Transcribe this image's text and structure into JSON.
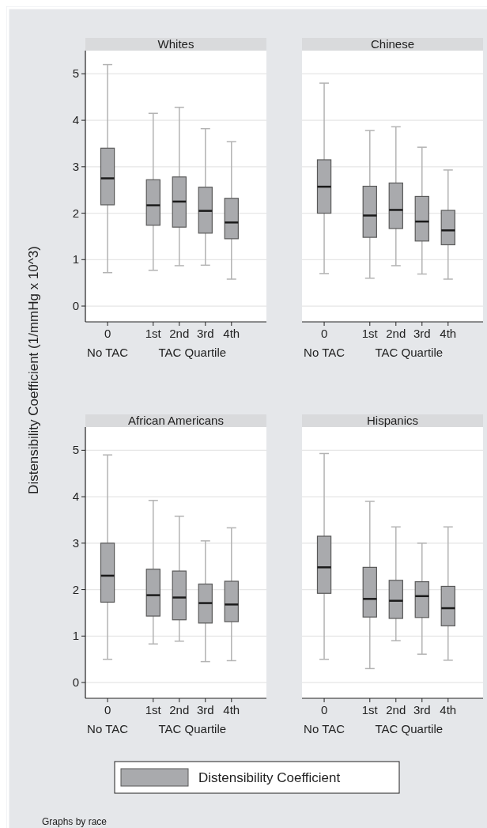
{
  "chart_data": [
    {
      "type": "box",
      "title": "Whites",
      "ylabel": "Distensibility Coefficient (1/mmHg x 10^3)",
      "categories": [
        "0",
        "1st",
        "2nd",
        "3rd",
        "4th"
      ],
      "ylim": [
        -0.34,
        5.5
      ],
      "yticks": [
        0,
        1,
        2,
        3,
        4,
        5
      ],
      "grid": "y",
      "annotations": [
        "No TAC",
        "TAC Quartile"
      ],
      "series": [
        {
          "color": "#a9aaad",
          "boxes": [
            {
              "low": 0.72,
              "q1": 2.18,
              "median": 2.75,
              "q3": 3.4,
              "high": 5.2
            },
            {
              "low": 0.77,
              "q1": 1.74,
              "median": 2.17,
              "q3": 2.72,
              "high": 4.15
            },
            {
              "low": 0.87,
              "q1": 1.7,
              "median": 2.25,
              "q3": 2.78,
              "high": 4.28
            },
            {
              "low": 0.88,
              "q1": 1.57,
              "median": 2.05,
              "q3": 2.56,
              "high": 3.82
            },
            {
              "low": 0.58,
              "q1": 1.45,
              "median": 1.8,
              "q3": 2.32,
              "high": 3.54
            }
          ]
        }
      ]
    },
    {
      "type": "box",
      "title": "Chinese",
      "categories": [
        "0",
        "1st",
        "2nd",
        "3rd",
        "4th"
      ],
      "ylim": [
        -0.34,
        5.5
      ],
      "yticks": [
        0,
        1,
        2,
        3,
        4,
        5
      ],
      "grid": "y",
      "tick_labels": "x",
      "annotations": [
        "No TAC",
        "TAC Quartile"
      ],
      "series": [
        {
          "color": "#a9aaad",
          "boxes": [
            {
              "low": 0.7,
              "q1": 2.0,
              "median": 2.57,
              "q3": 3.15,
              "high": 4.8
            },
            {
              "low": 0.6,
              "q1": 1.48,
              "median": 1.95,
              "q3": 2.58,
              "high": 3.78
            },
            {
              "low": 0.87,
              "q1": 1.67,
              "median": 2.07,
              "q3": 2.65,
              "high": 3.86
            },
            {
              "low": 0.69,
              "q1": 1.4,
              "median": 1.82,
              "q3": 2.36,
              "high": 3.42
            },
            {
              "low": 0.58,
              "q1": 1.32,
              "median": 1.63,
              "q3": 2.06,
              "high": 2.93
            }
          ]
        }
      ]
    },
    {
      "type": "box",
      "title": "African Americans",
      "categories": [
        "0",
        "1st",
        "2nd",
        "3rd",
        "4th"
      ],
      "ylim": [
        -0.34,
        5.5
      ],
      "yticks": [
        0,
        1,
        2,
        3,
        4,
        5
      ],
      "grid": "y",
      "annotations": [
        "No TAC",
        "TAC Quartile"
      ],
      "series": [
        {
          "color": "#a9aaad",
          "boxes": [
            {
              "low": 0.5,
              "q1": 1.73,
              "median": 2.3,
              "q3": 3.0,
              "high": 4.9
            },
            {
              "low": 0.83,
              "q1": 1.43,
              "median": 1.88,
              "q3": 2.44,
              "high": 3.92
            },
            {
              "low": 0.89,
              "q1": 1.35,
              "median": 1.83,
              "q3": 2.4,
              "high": 3.58
            },
            {
              "low": 0.45,
              "q1": 1.28,
              "median": 1.71,
              "q3": 2.12,
              "high": 3.05
            },
            {
              "low": 0.47,
              "q1": 1.31,
              "median": 1.68,
              "q3": 2.18,
              "high": 3.33
            }
          ]
        }
      ]
    },
    {
      "type": "box",
      "title": "Hispanics",
      "categories": [
        "0",
        "1st",
        "2nd",
        "3rd",
        "4th"
      ],
      "ylim": [
        -0.34,
        5.5
      ],
      "yticks": [
        0,
        1,
        2,
        3,
        4,
        5
      ],
      "grid": "y",
      "tick_labels": "x",
      "legend": "bottom",
      "annotations": [
        "No TAC",
        "TAC Quartile",
        "Graphs by race"
      ],
      "series": [
        {
          "name": "Distensibility Coefficient",
          "color": "#a9aaad",
          "boxes": [
            {
              "low": 0.5,
              "q1": 1.92,
              "median": 2.48,
              "q3": 3.15,
              "high": 4.93
            },
            {
              "low": 0.3,
              "q1": 1.41,
              "median": 1.8,
              "q3": 2.48,
              "high": 3.9
            },
            {
              "low": 0.9,
              "q1": 1.38,
              "median": 1.76,
              "q3": 2.2,
              "high": 3.35
            },
            {
              "low": 0.61,
              "q1": 1.4,
              "median": 1.86,
              "q3": 2.17,
              "high": 3.0
            },
            {
              "low": 0.48,
              "q1": 1.22,
              "median": 1.6,
              "q3": 2.07,
              "high": 3.35
            }
          ]
        }
      ]
    }
  ]
}
